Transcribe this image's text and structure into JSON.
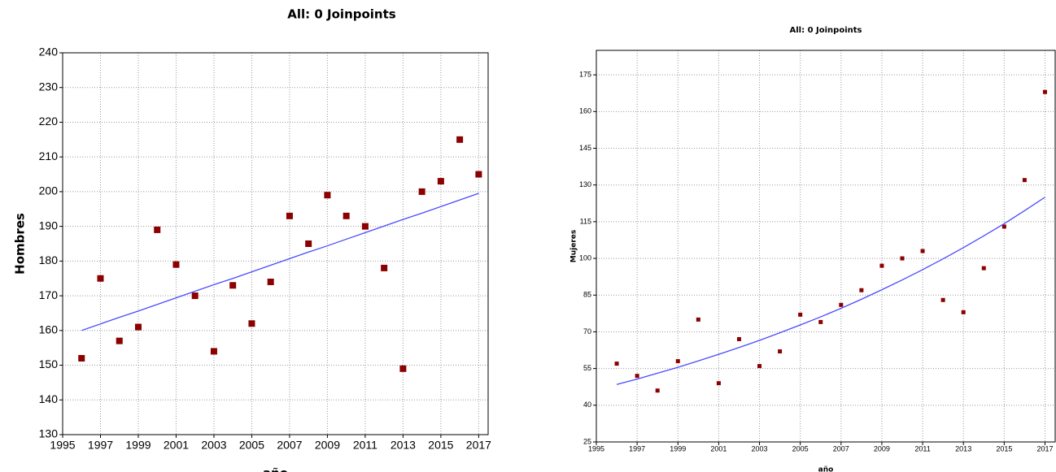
{
  "chart_data": [
    {
      "type": "scatter",
      "title": "All: 0 Joinpoints",
      "x_label": "año",
      "y_label": "Hombres",
      "x": [
        1996,
        1997,
        1998,
        1999,
        2000,
        2001,
        2002,
        2003,
        2004,
        2005,
        2006,
        2007,
        2008,
        2009,
        2010,
        2011,
        2012,
        2013,
        2014,
        2015,
        2016,
        2017
      ],
      "series": [
        {
          "color": "#8b0000",
          "values": [
            152,
            175,
            157,
            161,
            189,
            179,
            170,
            154,
            173,
            162,
            174,
            193,
            185,
            199,
            193,
            190,
            178,
            149,
            200,
            203,
            215,
            205
          ]
        },
        {
          "color": "#4a4aff",
          "style": "line",
          "values": [
            160,
            161.9,
            163.8,
            165.6,
            167.5,
            169.4,
            171.3,
            173.2,
            175,
            176.9,
            178.8,
            180.7,
            182.6,
            184.4,
            186.3,
            188.2,
            190.1,
            192,
            193.8,
            195.7,
            197.6,
            199.5
          ]
        }
      ],
      "xlim": [
        1995,
        2017.5
      ],
      "xticks": [
        1995,
        1997,
        1999,
        2001,
        2003,
        2005,
        2007,
        2009,
        2011,
        2013,
        2015,
        2017
      ],
      "ylim": [
        130,
        240
      ],
      "yticks": [
        130,
        140,
        150,
        160,
        170,
        180,
        190,
        200,
        210,
        220,
        230,
        240
      ],
      "grid": true
    },
    {
      "type": "scatter",
      "title": "All: 0 Joinpoints",
      "x_label": "año",
      "y_label": "Mujeres",
      "x": [
        1996,
        1997,
        1998,
        1999,
        2000,
        2001,
        2002,
        2003,
        2004,
        2005,
        2006,
        2007,
        2008,
        2009,
        2010,
        2011,
        2012,
        2013,
        2014,
        2015,
        2016,
        2017
      ],
      "series": [
        {
          "color": "#8b0000",
          "values": [
            57,
            52,
            46,
            58,
            75,
            49,
            67,
            56,
            62,
            77,
            74,
            81,
            87,
            97,
            100,
            103,
            83,
            78,
            96,
            113,
            132,
            168
          ]
        },
        {
          "color": "#4a4aff",
          "style": "line",
          "values": [
            48.5,
            50.7,
            53.1,
            55.5,
            58.1,
            60.8,
            63.6,
            66.5,
            69.6,
            72.8,
            76.1,
            79.6,
            83.3,
            87.2,
            91.2,
            95.4,
            99.8,
            104.4,
            109.2,
            114.2,
            119.5,
            125
          ]
        }
      ],
      "xlim": [
        1995,
        2017.5
      ],
      "xticks": [
        1995,
        1997,
        1999,
        2001,
        2003,
        2005,
        2007,
        2009,
        2011,
        2013,
        2015,
        2017
      ],
      "ylim": [
        25,
        185
      ],
      "yticks": [
        25,
        40,
        55,
        70,
        85,
        100,
        115,
        130,
        145,
        160,
        175
      ],
      "grid": true
    }
  ]
}
